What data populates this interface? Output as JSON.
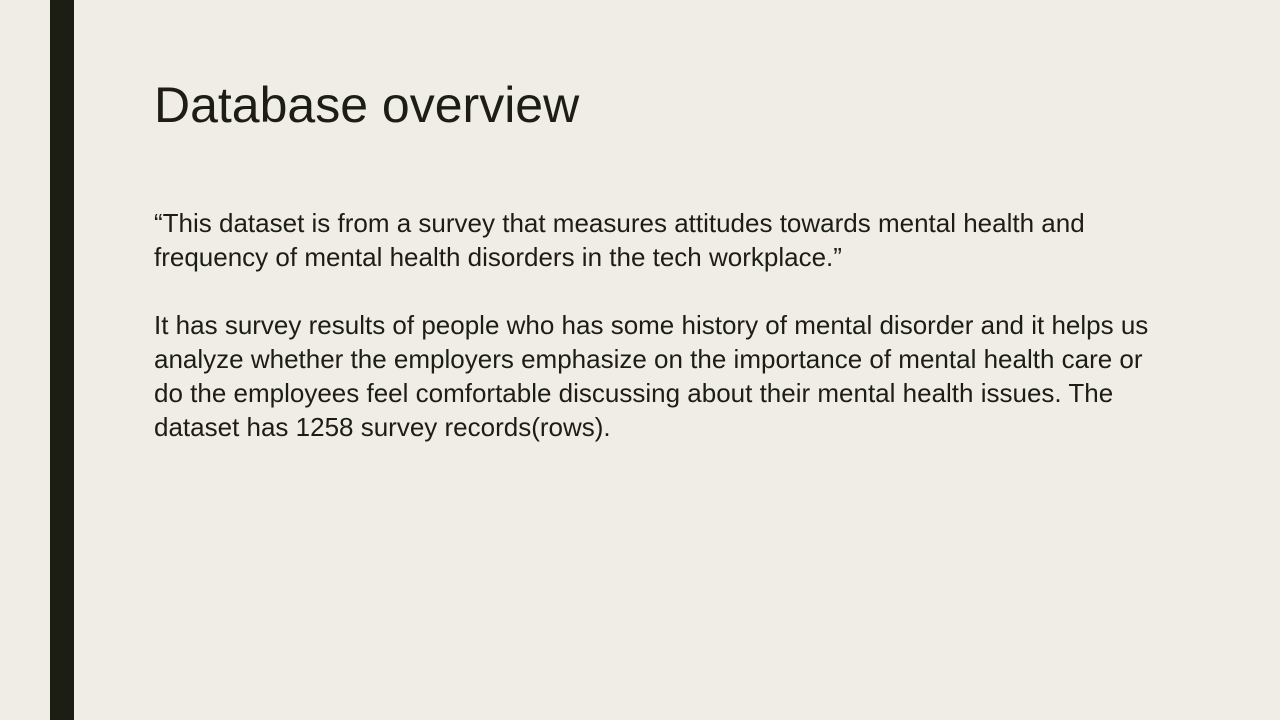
{
  "slide": {
    "title": "Database overview",
    "paragraphs": [
      "“This dataset is from a survey that measures attitudes towards mental health and frequency of mental health disorders in the tech workplace.”",
      "It has survey results of people who has some history of mental disorder and it helps us analyze whether the employers emphasize on the importance of mental health care or do the employees feel comfortable discussing about their mental health issues. The dataset has 1258 survey records(rows)."
    ]
  },
  "colors": {
    "background": "#EFEDE6",
    "accent_bar": "#1C1E14",
    "text": "#1C1E14"
  }
}
